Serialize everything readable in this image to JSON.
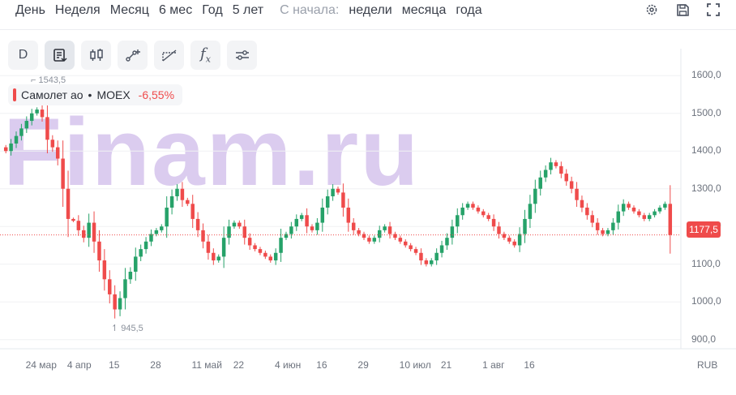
{
  "periods": [
    "День",
    "Неделя",
    "Месяц",
    "6 мес",
    "Год",
    "5 лет"
  ],
  "from_start_label": "С начала:",
  "from_start_options": [
    "недели",
    "месяца",
    "года"
  ],
  "top_icons": [
    "gear-icon",
    "save-icon",
    "fullscreen-icon"
  ],
  "tools": [
    "D",
    "note-icon",
    "candles-icon",
    "line-tool-icon",
    "fib-icon",
    "fx-icon",
    "settings-sliders-icon"
  ],
  "tool_d_label": "D",
  "legend": {
    "name": "Самолет ао",
    "dot": "•",
    "exchange": "MOEX",
    "change": "-6,55%"
  },
  "watermark": "Finam.ru",
  "high_label": "⌐ 1543,5",
  "low_label": "↿ 945,5",
  "last_price": "1177,5",
  "currency": "RUB",
  "colors": {
    "up": "#26a269",
    "down": "#ef4b4b",
    "price_line": "#ef4b4b"
  },
  "chart_data": {
    "type": "candlestick",
    "instrument": "Самолет ао",
    "exchange": "MOEX",
    "ylim": [
      880,
      1650
    ],
    "y_ticks": [
      "1600,0",
      "1500,0",
      "1400,0",
      "1300,0",
      "1200,0",
      "1100,0",
      "1000,0",
      "900,0"
    ],
    "y_tick_values": [
      1600,
      1500,
      1400,
      1300,
      1200,
      1100,
      1000,
      900
    ],
    "x_ticks": [
      "24 мар",
      "4 апр",
      "15",
      "28",
      "11 май",
      "22",
      "4 июн",
      "16",
      "29",
      "10 июл",
      "21",
      "1 авг",
      "16"
    ],
    "x_tick_index": [
      6,
      14,
      22,
      30,
      38,
      46,
      54,
      62,
      70,
      78,
      86,
      94,
      102
    ],
    "last": 1177.5,
    "high": 1543.5,
    "low": 945.5,
    "closes": [
      1400,
      1420,
      1440,
      1460,
      1480,
      1500,
      1510,
      1490,
      1430,
      1410,
      1380,
      1300,
      1220,
      1215,
      1190,
      1170,
      1210,
      1160,
      1110,
      1060,
      1020,
      980,
      1010,
      1060,
      1080,
      1120,
      1140,
      1160,
      1180,
      1190,
      1200,
      1250,
      1280,
      1300,
      1270,
      1260,
      1220,
      1190,
      1160,
      1130,
      1110,
      1120,
      1170,
      1200,
      1210,
      1200,
      1170,
      1150,
      1140,
      1130,
      1120,
      1110,
      1130,
      1170,
      1180,
      1200,
      1220,
      1230,
      1200,
      1190,
      1210,
      1250,
      1280,
      1300,
      1290,
      1250,
      1210,
      1190,
      1180,
      1170,
      1160,
      1170,
      1190,
      1200,
      1180,
      1170,
      1160,
      1150,
      1140,
      1130,
      1110,
      1100,
      1110,
      1130,
      1150,
      1170,
      1200,
      1230,
      1250,
      1260,
      1250,
      1240,
      1230,
      1220,
      1200,
      1180,
      1170,
      1160,
      1150,
      1180,
      1220,
      1260,
      1300,
      1330,
      1350,
      1370,
      1360,
      1340,
      1320,
      1300,
      1270,
      1250,
      1230,
      1210,
      1190,
      1180,
      1190,
      1210,
      1240,
      1260,
      1250,
      1240,
      1230,
      1220,
      1230,
      1240,
      1250,
      1260,
      1177.5
    ]
  }
}
